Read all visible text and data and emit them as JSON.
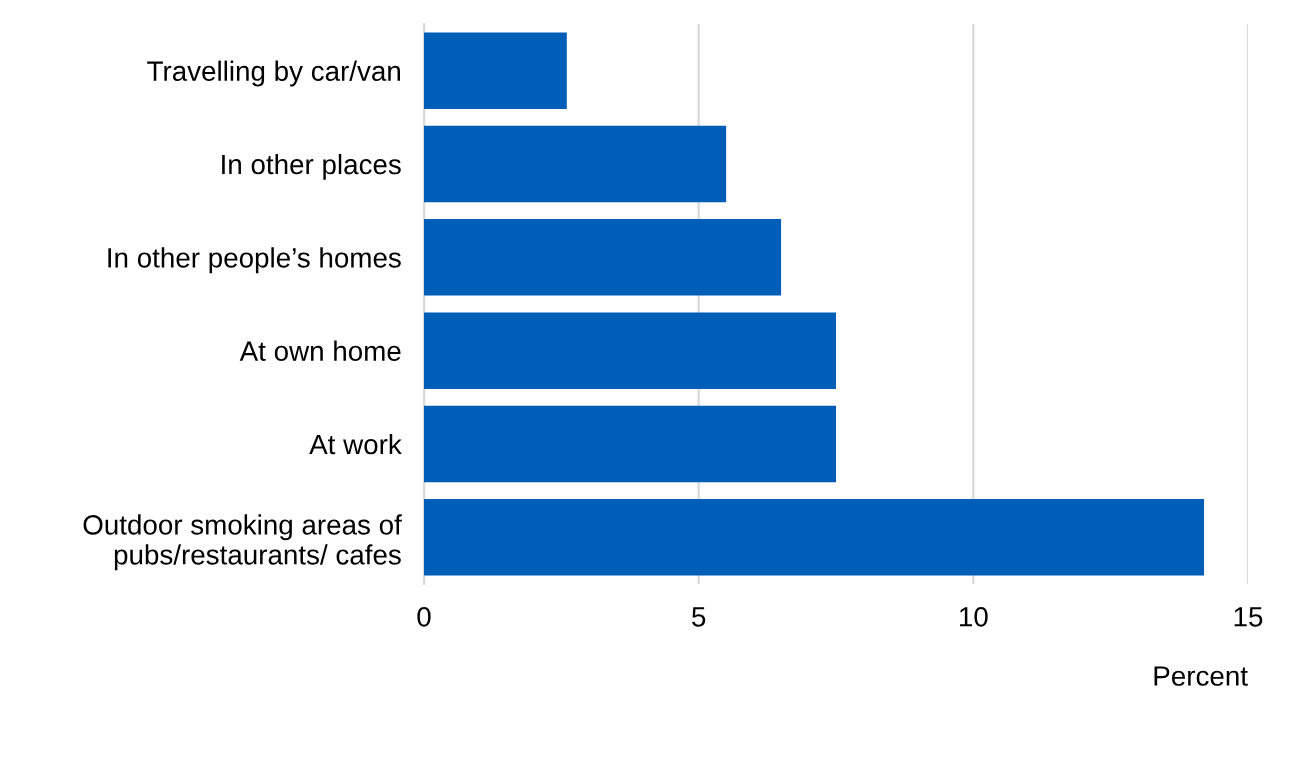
{
  "chart_data": {
    "type": "bar",
    "orientation": "horizontal",
    "xlabel": "Percent",
    "categories": [
      "Travelling by car/van",
      "In other places",
      "In other people’s homes",
      "At own home",
      "At work",
      "Outdoor smoking areas of\npubs/restaurants/ cafes"
    ],
    "values": [
      2.6,
      5.5,
      6.5,
      7.5,
      7.5,
      14.2
    ],
    "color": "#005eb8",
    "xlim": [
      0,
      15
    ],
    "xticks": [
      0,
      5,
      10,
      15
    ],
    "grid": "x"
  }
}
